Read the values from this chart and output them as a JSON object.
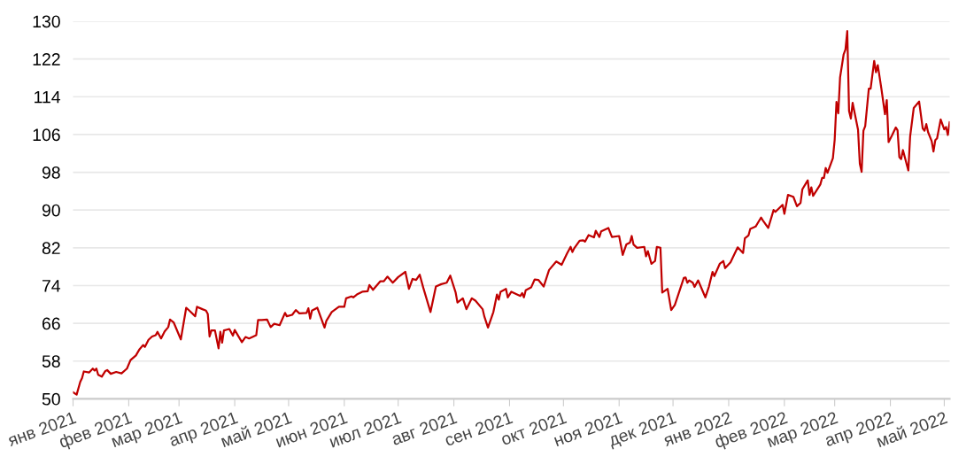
{
  "chart_data": {
    "type": "line",
    "color": "#c00000",
    "grid": "y",
    "line_style": "solid",
    "marker": "none",
    "x": [
      "2021-01-01",
      "2021-01-03",
      "2021-01-05",
      "2021-01-06",
      "2021-01-07",
      "2021-01-10",
      "2021-01-12",
      "2021-01-13",
      "2021-01-14",
      "2021-01-15",
      "2021-01-17",
      "2021-01-19",
      "2021-01-20",
      "2021-01-22",
      "2021-01-25",
      "2021-01-28",
      "2021-01-31",
      "2021-02-02",
      "2021-02-05",
      "2021-02-07",
      "2021-02-09",
      "2021-02-10",
      "2021-02-12",
      "2021-02-14",
      "2021-02-16",
      "2021-02-17",
      "2021-02-19",
      "2021-02-21",
      "2021-02-23",
      "2021-02-24",
      "2021-02-26",
      "2021-03-02",
      "2021-03-05",
      "2021-03-07",
      "2021-03-10",
      "2021-03-11",
      "2021-03-14",
      "2021-03-16",
      "2021-03-17",
      "2021-03-18",
      "2021-03-19",
      "2021-03-21",
      "2021-03-23",
      "2021-03-24",
      "2021-03-25",
      "2021-03-26",
      "2021-03-29",
      "2021-03-31",
      "2021-04-01",
      "2021-04-05",
      "2021-04-07",
      "2021-04-09",
      "2021-04-13",
      "2021-04-14",
      "2021-04-16",
      "2021-04-19",
      "2021-04-21",
      "2021-04-23",
      "2021-04-26",
      "2021-04-29",
      "2021-04-30",
      "2021-05-03",
      "2021-05-05",
      "2021-05-07",
      "2021-05-11",
      "2021-05-12",
      "2021-05-13",
      "2021-05-14",
      "2021-05-17",
      "2021-05-21",
      "2021-05-22",
      "2021-05-25",
      "2021-05-29",
      "2021-06-01",
      "2021-06-02",
      "2021-06-05",
      "2021-06-06",
      "2021-06-08",
      "2021-06-11",
      "2021-06-14",
      "2021-06-15",
      "2021-06-17",
      "2021-06-21",
      "2021-06-23",
      "2021-06-25",
      "2021-06-28",
      "2021-07-01",
      "2021-07-05",
      "2021-07-07",
      "2021-07-09",
      "2021-07-11",
      "2021-07-13",
      "2021-07-15",
      "2021-07-19",
      "2021-07-22",
      "2021-07-25",
      "2021-07-28",
      "2021-07-30",
      "2021-08-02",
      "2021-08-03",
      "2021-08-06",
      "2021-08-08",
      "2021-08-11",
      "2021-08-13",
      "2021-08-17",
      "2021-08-18",
      "2021-08-20",
      "2021-08-23",
      "2021-08-25",
      "2021-08-26",
      "2021-08-27",
      "2021-08-30",
      "2021-08-31",
      "2021-09-02",
      "2021-09-07",
      "2021-09-08",
      "2021-09-09",
      "2021-09-10",
      "2021-09-13",
      "2021-09-15",
      "2021-09-17",
      "2021-09-20",
      "2021-09-23",
      "2021-09-27",
      "2021-09-30",
      "2021-10-03",
      "2021-10-05",
      "2021-10-06",
      "2021-10-07",
      "2021-10-10",
      "2021-10-12",
      "2021-10-13",
      "2021-10-15",
      "2021-10-18",
      "2021-10-19",
      "2021-10-21",
      "2021-10-22",
      "2021-10-26",
      "2021-10-28",
      "2021-11-01",
      "2021-11-03",
      "2021-11-05",
      "2021-11-07",
      "2021-11-08",
      "2021-11-09",
      "2021-11-11",
      "2021-11-15",
      "2021-11-16",
      "2021-11-17",
      "2021-11-19",
      "2021-11-21",
      "2021-11-22",
      "2021-11-24",
      "2021-11-25",
      "2021-11-28",
      "2021-11-30",
      "2021-12-02",
      "2021-12-05",
      "2021-12-07",
      "2021-12-08",
      "2021-12-09",
      "2021-12-10",
      "2021-12-12",
      "2021-12-13",
      "2021-12-15",
      "2021-12-17",
      "2021-12-19",
      "2021-12-21",
      "2021-12-23",
      "2021-12-24",
      "2021-12-27",
      "2021-12-29",
      "2021-12-30",
      "2022-01-02",
      "2022-01-06",
      "2022-01-09",
      "2022-01-10",
      "2022-01-12",
      "2022-01-13",
      "2022-01-16",
      "2022-01-19",
      "2022-01-20",
      "2022-01-23",
      "2022-01-26",
      "2022-01-27",
      "2022-01-31",
      "2022-02-01",
      "2022-02-03",
      "2022-02-06",
      "2022-02-08",
      "2022-02-10",
      "2022-02-11",
      "2022-02-14",
      "2022-02-15",
      "2022-02-16",
      "2022-02-17",
      "2022-02-21",
      "2022-02-22",
      "2022-02-23",
      "2022-02-24",
      "2022-02-25",
      "2022-02-28",
      "2022-03-01",
      "2022-03-02",
      "2022-03-03",
      "2022-03-04",
      "2022-03-06",
      "2022-03-07",
      "2022-03-08",
      "2022-03-09",
      "2022-03-10",
      "2022-03-11",
      "2022-03-14",
      "2022-03-15",
      "2022-03-16",
      "2022-03-17",
      "2022-03-18",
      "2022-03-20",
      "2022-03-21",
      "2022-03-23",
      "2022-03-24",
      "2022-03-25",
      "2022-03-27",
      "2022-03-29",
      "2022-03-30",
      "2022-03-31",
      "2022-04-02",
      "2022-04-04",
      "2022-04-05",
      "2022-04-06",
      "2022-04-07",
      "2022-04-08",
      "2022-04-11",
      "2022-04-12",
      "2022-04-14",
      "2022-04-17",
      "2022-04-19",
      "2022-04-20",
      "2022-04-21",
      "2022-04-22",
      "2022-04-24",
      "2022-04-25",
      "2022-04-26",
      "2022-04-27",
      "2022-04-29",
      "2022-05-01",
      "2022-05-02",
      "2022-05-03",
      "2022-05-04"
    ],
    "values": [
      51.4,
      50.9,
      53.6,
      54.4,
      55.8,
      55.6,
      56.4,
      56.0,
      56.4,
      55.1,
      54.7,
      55.9,
      56.1,
      55.3,
      55.7,
      55.4,
      56.4,
      58.2,
      59.2,
      60.5,
      61.4,
      61.0,
      62.5,
      63.2,
      63.5,
      64.2,
      62.8,
      64.3,
      65.2,
      66.8,
      66.2,
      62.6,
      69.3,
      68.6,
      67.5,
      69.5,
      69.0,
      68.7,
      68.0,
      63.2,
      64.5,
      64.5,
      60.7,
      64.2,
      61.9,
      64.5,
      64.8,
      63.4,
      64.6,
      62.0,
      63.1,
      62.8,
      63.5,
      66.7,
      66.7,
      66.8,
      65.2,
      65.9,
      65.6,
      68.2,
      67.5,
      67.8,
      68.8,
      68.1,
      68.2,
      69.2,
      67.0,
      68.7,
      69.3,
      65.1,
      66.5,
      68.4,
      69.5,
      69.5,
      71.3,
      71.7,
      71.5,
      72.1,
      72.7,
      72.8,
      74.1,
      73.1,
      74.9,
      74.9,
      75.9,
      74.6,
      75.8,
      76.9,
      73.3,
      75.4,
      75.2,
      76.3,
      73.5,
      68.4,
      73.8,
      74.3,
      74.6,
      76.1,
      72.5,
      70.4,
      71.3,
      69.0,
      71.3,
      70.8,
      69.0,
      67.4,
      65.1,
      68.4,
      72.1,
      71.0,
      72.7,
      73.3,
      71.5,
      72.7,
      71.8,
      72.4,
      71.5,
      73.0,
      73.6,
      75.3,
      75.2,
      73.8,
      77.3,
      79.1,
      78.4,
      80.8,
      82.2,
      81.1,
      81.9,
      83.5,
      83.6,
      83.3,
      84.7,
      84.2,
      85.6,
      84.3,
      85.5,
      86.2,
      84.3,
      84.5,
      80.5,
      82.7,
      83.1,
      84.5,
      82.7,
      82.0,
      82.2,
      80.2,
      81.3,
      78.6,
      79.2,
      82.2,
      82.0,
      72.5,
      73.3,
      68.8,
      69.9,
      73.3,
      75.6,
      75.7,
      74.6,
      75.1,
      74.6,
      73.7,
      75.1,
      73.3,
      71.5,
      73.8,
      76.9,
      76.0,
      78.6,
      79.2,
      77.7,
      78.9,
      82.1,
      80.9,
      84.0,
      84.6,
      86.0,
      86.5,
      88.4,
      87.8,
      86.2,
      90.0,
      89.6,
      91.1,
      89.2,
      93.2,
      92.8,
      90.8,
      91.5,
      94.4,
      96.3,
      93.2,
      94.8,
      93.0,
      95.4,
      96.8,
      96.8,
      98.9,
      97.9,
      101.0,
      104.9,
      112.9,
      110.5,
      118.1,
      123.0,
      124.0,
      127.9,
      111.0,
      109.4,
      112.7,
      107.0,
      99.8,
      98.1,
      106.8,
      107.8,
      115.7,
      115.7,
      121.6,
      119.2,
      120.7,
      115.7,
      110.3,
      113.3,
      104.4,
      105.9,
      107.5,
      106.9,
      101.2,
      100.8,
      102.7,
      98.4,
      105.6,
      111.6,
      113.0,
      107.3,
      106.8,
      108.2,
      106.5,
      104.6,
      102.4,
      104.8,
      105.2,
      109.2,
      107.1,
      107.6,
      105.9,
      108.6
    ],
    "xlim": [
      "2021-01-01",
      "2022-05-04"
    ],
    "xticks": [
      {
        "value": "2021-01-01",
        "label": "янв 2021"
      },
      {
        "value": "2021-02-01",
        "label": "фев 2021"
      },
      {
        "value": "2021-03-01",
        "label": "мар 2021"
      },
      {
        "value": "2021-04-01",
        "label": "апр 2021"
      },
      {
        "value": "2021-05-01",
        "label": "май 2021"
      },
      {
        "value": "2021-06-01",
        "label": "июн 2021"
      },
      {
        "value": "2021-07-01",
        "label": "июл 2021"
      },
      {
        "value": "2021-08-01",
        "label": "авг 2021"
      },
      {
        "value": "2021-09-01",
        "label": "сен 2021"
      },
      {
        "value": "2021-10-01",
        "label": "окт 2021"
      },
      {
        "value": "2021-11-01",
        "label": "ноя 2021"
      },
      {
        "value": "2021-12-01",
        "label": "дек 2021"
      },
      {
        "value": "2022-01-01",
        "label": "янв 2022"
      },
      {
        "value": "2022-02-01",
        "label": "фев 2022"
      },
      {
        "value": "2022-03-01",
        "label": "мар 2022"
      },
      {
        "value": "2022-04-01",
        "label": "апр 2022"
      },
      {
        "value": "2022-05-01",
        "label": "май 2022"
      }
    ],
    "ylim": [
      50,
      130
    ],
    "yticks": [
      50,
      58,
      66,
      74,
      82,
      90,
      98,
      106,
      114,
      122,
      130
    ]
  }
}
